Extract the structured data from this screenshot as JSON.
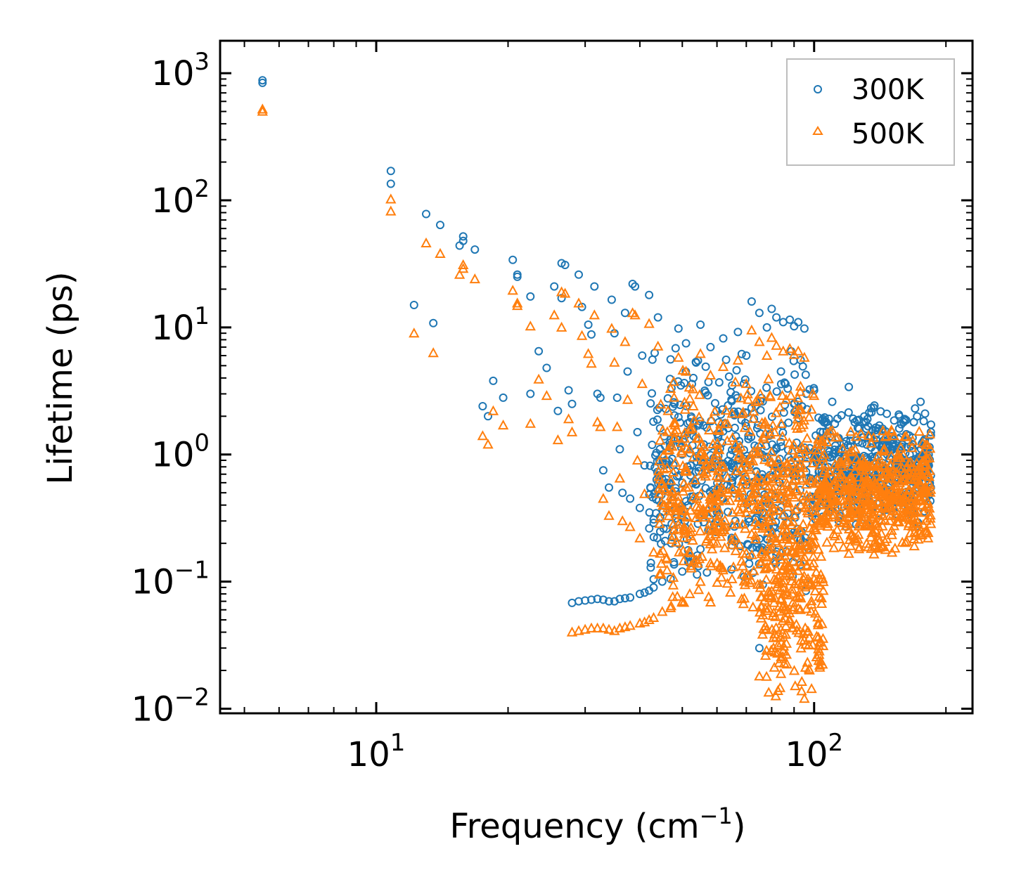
{
  "chart_data": {
    "type": "scatter",
    "title": "",
    "xlabel": "Frequency (cm",
    "xlabel_sup": "−1",
    "xlabel_suffix": ")",
    "ylabel": "Lifetime (ps)",
    "xscale": "log",
    "yscale": "log",
    "xlim": [
      4.4,
      230
    ],
    "ylim": [
      0.0092,
      1800
    ],
    "x_major_ticks": [
      {
        "value": 10,
        "base": "10",
        "exp": "1"
      },
      {
        "value": 100,
        "base": "10",
        "exp": "2"
      }
    ],
    "y_major_ticks": [
      {
        "value": 0.01,
        "base": "10",
        "exp": "−2"
      },
      {
        "value": 0.1,
        "base": "10",
        "exp": "−1"
      },
      {
        "value": 1,
        "base": "10",
        "exp": "0"
      },
      {
        "value": 10,
        "base": "10",
        "exp": "1"
      },
      {
        "value": 100,
        "base": "10",
        "exp": "2"
      },
      {
        "value": 1000,
        "base": "10",
        "exp": "3"
      }
    ],
    "legend_position": "top-right",
    "series": [
      {
        "name": "300K",
        "marker": "circle-open",
        "color": "#1f77b4",
        "points": [
          [
            5.5,
            880
          ],
          [
            5.5,
            840
          ],
          [
            10.8,
            170
          ],
          [
            10.8,
            135
          ],
          [
            12.2,
            15
          ],
          [
            13.0,
            78
          ],
          [
            13.5,
            10.8
          ],
          [
            14.0,
            64
          ],
          [
            15.8,
            52
          ],
          [
            15.8,
            48
          ],
          [
            15.5,
            44
          ],
          [
            16.8,
            41
          ],
          [
            17.5,
            2.4
          ],
          [
            18.0,
            2.0
          ],
          [
            18.5,
            3.8
          ],
          [
            19.5,
            2.8
          ],
          [
            20.5,
            34
          ],
          [
            21.0,
            26
          ],
          [
            21.0,
            25
          ],
          [
            22.5,
            17.5
          ],
          [
            22.5,
            3.0
          ],
          [
            23.5,
            6.5
          ],
          [
            24.5,
            4.8
          ],
          [
            25.5,
            21
          ],
          [
            26.0,
            2.2
          ],
          [
            26.5,
            32
          ],
          [
            27.0,
            31
          ],
          [
            26.5,
            17
          ],
          [
            27.5,
            3.2
          ],
          [
            28.0,
            2.5
          ],
          [
            29.0,
            26
          ],
          [
            29.5,
            14.5
          ],
          [
            30.5,
            10.5
          ],
          [
            31.0,
            8.8
          ],
          [
            31.5,
            21
          ],
          [
            32.0,
            3.0
          ],
          [
            32.5,
            2.8
          ],
          [
            33.0,
            0.75
          ],
          [
            34.0,
            0.55
          ],
          [
            34.5,
            16.5
          ],
          [
            35.0,
            9.0
          ],
          [
            35.5,
            2.8
          ],
          [
            36.0,
            1.1
          ],
          [
            36.5,
            0.5
          ],
          [
            37.0,
            13
          ],
          [
            37.5,
            4.5
          ],
          [
            38.0,
            0.45
          ],
          [
            38.5,
            22
          ],
          [
            39.0,
            21
          ],
          [
            39.5,
            1.5
          ],
          [
            40.0,
            0.38
          ],
          [
            40.5,
            6.0
          ],
          [
            41.0,
            0.82
          ],
          [
            42.0,
            18
          ],
          [
            43.0,
            0.29
          ],
          [
            44.0,
            12
          ],
          [
            45.0,
            1.0
          ],
          [
            46.0,
            0.26
          ],
          [
            47.0,
            5.6
          ],
          [
            48.0,
            2.5
          ],
          [
            49.0,
            9.8
          ],
          [
            50.0,
            0.6
          ],
          [
            51.0,
            7.5
          ],
          [
            52.0,
            1.8
          ],
          [
            53.0,
            4.0
          ],
          [
            55.0,
            10.5
          ],
          [
            56.0,
            1.2
          ],
          [
            58.0,
            7.0
          ],
          [
            60.0,
            0.9
          ],
          [
            62.0,
            8.2
          ],
          [
            65.0,
            3.5
          ],
          [
            67.0,
            9.2
          ],
          [
            70.0,
            6.0
          ],
          [
            72.0,
            16
          ],
          [
            75.0,
            13
          ],
          [
            78.0,
            10
          ],
          [
            80.0,
            14
          ],
          [
            82.0,
            12
          ],
          [
            85.0,
            11
          ],
          [
            88.0,
            11.5
          ],
          [
            90.0,
            10.2
          ],
          [
            92.0,
            11
          ],
          [
            95.0,
            9.8
          ],
          [
            84.0,
            4.5
          ],
          [
            86.0,
            3.6
          ],
          [
            90.0,
            2.5
          ],
          [
            96.0,
            3.0
          ],
          [
            100.0,
            3.2
          ],
          [
            110.0,
            2.6
          ],
          [
            120.0,
            3.4
          ],
          [
            130.0,
            1.8
          ],
          [
            140.0,
            1.6
          ],
          [
            150.0,
            1.5
          ],
          [
            160.0,
            1.8
          ],
          [
            170.0,
            2.3
          ],
          [
            175.0,
            2.6
          ],
          [
            180.0,
            1.0
          ],
          [
            182.0,
            0.8
          ],
          [
            75.0,
            0.03
          ],
          [
            28.0,
            0.068
          ],
          [
            29.0,
            0.07
          ],
          [
            30.0,
            0.071
          ],
          [
            31.0,
            0.072
          ],
          [
            32.0,
            0.073
          ],
          [
            33.0,
            0.072
          ],
          [
            34.0,
            0.07
          ],
          [
            35.0,
            0.07
          ],
          [
            36.0,
            0.073
          ],
          [
            37.0,
            0.074
          ],
          [
            38.0,
            0.075
          ],
          [
            40.0,
            0.08
          ],
          [
            41.0,
            0.082
          ],
          [
            42.0,
            0.085
          ],
          [
            43.0,
            0.09
          ],
          [
            45.0,
            0.1
          ],
          [
            47.0,
            0.105
          ],
          [
            50.0,
            0.12
          ],
          [
            52.0,
            0.14
          ],
          [
            55.0,
            0.18
          ],
          [
            58.0,
            0.25
          ],
          [
            60.0,
            0.35
          ],
          [
            62.0,
            0.45
          ],
          [
            65.0,
            0.6
          ]
        ],
        "clusters": [
          {
            "x": [
              42,
              100
            ],
            "y": [
              0.08,
              8.0
            ],
            "count": 500
          },
          {
            "x": [
              100,
              185
            ],
            "y": [
              0.25,
              2.5
            ],
            "count": 500
          }
        ]
      },
      {
        "name": "500K",
        "marker": "triangle-open",
        "color": "#ff7f0e",
        "points": [
          [
            5.5,
            520
          ],
          [
            5.5,
            500
          ],
          [
            10.8,
            102
          ],
          [
            10.8,
            82
          ],
          [
            12.2,
            9.0
          ],
          [
            13.0,
            46
          ],
          [
            13.5,
            6.3
          ],
          [
            14.0,
            38
          ],
          [
            15.8,
            31
          ],
          [
            15.8,
            29
          ],
          [
            15.5,
            26
          ],
          [
            16.8,
            24
          ],
          [
            17.5,
            1.4
          ],
          [
            18.0,
            1.2
          ],
          [
            18.5,
            2.2
          ],
          [
            19.5,
            1.7
          ],
          [
            20.5,
            19.5
          ],
          [
            21.0,
            15.5
          ],
          [
            21.0,
            14.8
          ],
          [
            22.5,
            10.2
          ],
          [
            22.5,
            1.75
          ],
          [
            23.5,
            3.9
          ],
          [
            24.5,
            2.9
          ],
          [
            25.5,
            12.5
          ],
          [
            26.0,
            1.3
          ],
          [
            26.5,
            19
          ],
          [
            27.0,
            18.5
          ],
          [
            26.5,
            10
          ],
          [
            27.5,
            1.9
          ],
          [
            28.0,
            1.5
          ],
          [
            29.0,
            15.5
          ],
          [
            29.5,
            8.6
          ],
          [
            30.5,
            6.2
          ],
          [
            31.0,
            5.2
          ],
          [
            31.5,
            12.5
          ],
          [
            32.0,
            1.8
          ],
          [
            32.5,
            1.65
          ],
          [
            33.0,
            0.45
          ],
          [
            34.0,
            0.33
          ],
          [
            34.5,
            9.8
          ],
          [
            35.0,
            5.3
          ],
          [
            35.5,
            1.65
          ],
          [
            36.0,
            0.65
          ],
          [
            36.5,
            0.3
          ],
          [
            37.0,
            7.7
          ],
          [
            37.5,
            2.7
          ],
          [
            38.0,
            0.27
          ],
          [
            38.5,
            13
          ],
          [
            39.0,
            12.5
          ],
          [
            39.5,
            0.9
          ],
          [
            40.0,
            0.22
          ],
          [
            40.5,
            3.6
          ],
          [
            41.0,
            0.49
          ],
          [
            42.0,
            10.7
          ],
          [
            43.0,
            0.17
          ],
          [
            44.0,
            7.1
          ],
          [
            45.0,
            0.6
          ],
          [
            46.0,
            0.15
          ],
          [
            47.0,
            3.3
          ],
          [
            48.0,
            1.5
          ],
          [
            49.0,
            5.8
          ],
          [
            50.0,
            0.36
          ],
          [
            51.0,
            4.5
          ],
          [
            52.0,
            1.1
          ],
          [
            53.0,
            2.4
          ],
          [
            55.0,
            6.2
          ],
          [
            56.0,
            0.7
          ],
          [
            58.0,
            4.2
          ],
          [
            60.0,
            0.55
          ],
          [
            62.0,
            4.9
          ],
          [
            65.0,
            2.1
          ],
          [
            67.0,
            5.5
          ],
          [
            70.0,
            3.6
          ],
          [
            72.0,
            9.5
          ],
          [
            75.0,
            7.7
          ],
          [
            78.0,
            6.0
          ],
          [
            80.0,
            8.3
          ],
          [
            82.0,
            7.2
          ],
          [
            85.0,
            6.5
          ],
          [
            88.0,
            6.8
          ],
          [
            90.0,
            6.1
          ],
          [
            92.0,
            6.5
          ],
          [
            95.0,
            5.8
          ],
          [
            75.0,
            0.018
          ],
          [
            95.0,
            0.012
          ],
          [
            28.0,
            0.04
          ],
          [
            29.0,
            0.041
          ],
          [
            30.0,
            0.042
          ],
          [
            31.0,
            0.043
          ],
          [
            32.0,
            0.043
          ],
          [
            33.0,
            0.043
          ],
          [
            34.0,
            0.042
          ],
          [
            35.0,
            0.041
          ],
          [
            36.0,
            0.043
          ],
          [
            37.0,
            0.044
          ],
          [
            38.0,
            0.045
          ],
          [
            40.0,
            0.047
          ],
          [
            41.0,
            0.048
          ],
          [
            42.0,
            0.05
          ],
          [
            43.0,
            0.052
          ],
          [
            45.0,
            0.058
          ],
          [
            47.0,
            0.062
          ],
          [
            50.0,
            0.07
          ],
          [
            52.0,
            0.08
          ],
          [
            55.0,
            0.1
          ],
          [
            58.0,
            0.14
          ],
          [
            60.0,
            0.2
          ],
          [
            62.0,
            0.27
          ],
          [
            65.0,
            0.35
          ],
          [
            180.0,
            0.25
          ],
          [
            182.0,
            0.22
          ]
        ],
        "clusters": [
          {
            "x": [
              44,
              100
            ],
            "y": [
              0.05,
              5.0
            ],
            "count": 550
          },
          {
            "x": [
              75,
              105
            ],
            "y": [
              0.012,
              0.3
            ],
            "count": 220
          },
          {
            "x": [
              100,
              185
            ],
            "y": [
              0.15,
              1.8
            ],
            "count": 550
          }
        ]
      }
    ]
  }
}
